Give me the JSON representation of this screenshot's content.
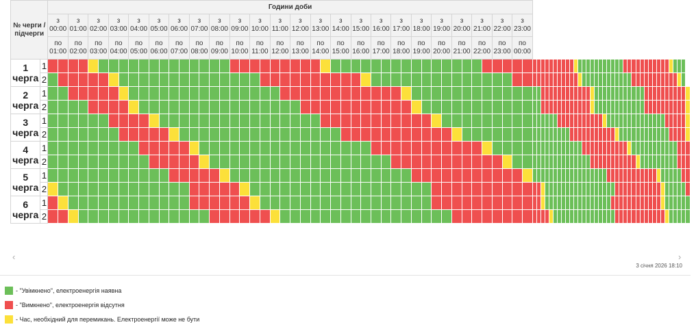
{
  "table": {
    "title": "Години доби",
    "queue_header": "№ черги / підчерги",
    "from_prefix": "з",
    "to_prefix": "по",
    "hours_from": [
      "00:00",
      "01:00",
      "02:00",
      "03:00",
      "04:00",
      "05:00",
      "06:00",
      "07:00",
      "08:00",
      "09:00",
      "10:00",
      "11:00",
      "12:00",
      "13:00",
      "14:00",
      "15:00",
      "16:00",
      "17:00",
      "18:00",
      "19:00",
      "20:00",
      "21:00",
      "22:00",
      "23:00"
    ],
    "hours_to": [
      "01:00",
      "02:00",
      "03:00",
      "04:00",
      "05:00",
      "06:00",
      "07:00",
      "08:00",
      "09:00",
      "10:00",
      "11:00",
      "12:00",
      "13:00",
      "14:00",
      "15:00",
      "16:00",
      "17:00",
      "18:00",
      "19:00",
      "20:00",
      "21:00",
      "22:00",
      "23:00",
      "00:00"
    ],
    "queues": [
      {
        "number": "1",
        "label": "черга",
        "subqueues": [
          {
            "sub": "1",
            "slots": "RRRRYGGGGGGGGGGGGGRRRRRRRRRYGGGGGGGGGGGGGGGRRRRRRRRRRRRRRRYGGGGGGGGGGGRRRRRRRRRRRYGGG"
          },
          {
            "sub": "2",
            "slots": "GRRRRRYGGGGGGGGGGGGGGRRRRRRRRRRYGGGGGGGGGGGGGGRRRRRRRRRRRRRYGGGGGGGGGGGGRRRRRRRRRRRYG"
          }
        ]
      },
      {
        "number": "2",
        "label": "черга",
        "subqueues": [
          {
            "sub": "1",
            "slots": "GGRRRRRYGGGGGGGGGGGGGGGRRRRRRRRRRRRYGGGGGGGGGGGGGGRRRRRRRRRRRRYGGGGGGGGGGGGRRRRRRRRRRY"
          },
          {
            "sub": "2",
            "slots": "GGGGRRRRYGGGGGGGGGGGGGGGGRRRRRRRRRRRYGGGGGGGGGGGGGRRRRRRRRRRRRYGGGGGGGGGGGGRRRRRRRRRRY"
          }
        ]
      },
      {
        "number": "3",
        "label": "черга",
        "subqueues": [
          {
            "sub": "1",
            "slots": "GGGGGGRRRRYGGGGGGGGGGGGGGGGRRRRRRRRRRRYGGGGGGGGGGGGGGGRRRRRRRRRRRYGGGGGGGGGGGGGGRRRRRY"
          },
          {
            "sub": "2",
            "slots": "GGGGGGGRRRRRYGGGGGGGGGGGGGGGGRRRRRRRRRRRYGGGGGGGGGGGGGGGGRRRRRRRRRRRYGGGGGGGGGGGGRRRRY"
          }
        ]
      },
      {
        "number": "4",
        "label": "черга",
        "subqueues": [
          {
            "sub": "1",
            "slots": "GGGGGGGGGRRRRRYGGGGGGGGGGGGGGGGGRRRRRRRRRRRYGGGGGGGGGGGGGGGGRRRRRRRRRRRYGGGGGGGGGGGRRR"
          },
          {
            "sub": "2",
            "slots": "GGGGGGGGGGRRRRRYGGGGGGGGGGGGGGGGGGRRRRRRRRRRRYGGGGGGGGGGGGGGGGRRRRRRRRRRRYGGGGGGGGGRRR"
          }
        ]
      },
      {
        "number": "5",
        "label": "черга",
        "subqueues": [
          {
            "sub": "1",
            "slots": "GGGGGGGGGGGGRRRRRYGGGGGGGGGGGGGGGGGGRRRRRRRRRRRYGGGGGGGGGGGGGGGGGGRRRRRRRRRRRRYGGGGGRR"
          },
          {
            "sub": "2",
            "slots": "YGGGGGGGGGGGGGRRRRRYGGGGGGGGGGGGGGGGGGRRRRRRRRRRRRYGGGGGGGGGGGGGGGGGRRRRRRRRRRRYGGGGGR"
          }
        ]
      },
      {
        "number": "6",
        "label": "черга",
        "subqueues": [
          {
            "sub": "1",
            "slots": "RYGGGGGGGGGGGGRRRRRRYGGGGGGGGGGGGGGGGGRRRRRRRRRRRRYGGGGGGGGGGGGGGGGRRRRRRRRRRRRYGGGGGG"
          },
          {
            "sub": "2",
            "slots": "RRYGGGGGGGGGGGGGRRRRRRYGGGGGGGGGGGGGGGGGRRRRRRRRRRRRYGGGGGGGGGGGGGGGRRRRRRRRRRRRYGGGGG"
          }
        ]
      }
    ]
  },
  "status_colors": {
    "G": "#6cbf59",
    "R": "#ef4f4f",
    "Y": "#fce03a"
  },
  "timestamp": "3 січня 2026 18:10",
  "scroll": {
    "left_icon": "chevron-left-icon",
    "right_icon": "chevron-right-icon",
    "left_glyph": "‹",
    "right_glyph": "›"
  },
  "legend": [
    {
      "status": "G",
      "color": "#6cbf59",
      "text": "- \"Увімкнено\", електроенергія наявна"
    },
    {
      "status": "R",
      "color": "#ef4f4f",
      "text": "- \"Вимкнено\", електроенергія відсутня"
    },
    {
      "status": "Y",
      "color": "#fce03a",
      "text": "- Час, необхідний для перемикань. Електроенергії може не бути"
    }
  ]
}
